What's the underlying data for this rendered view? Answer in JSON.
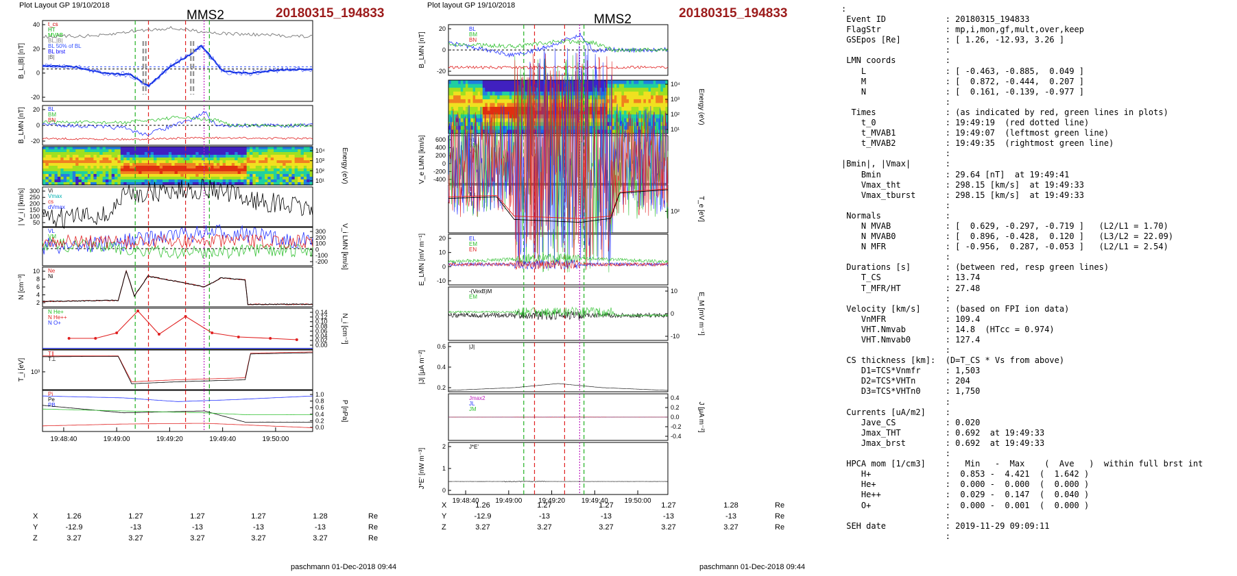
{
  "left_panel": {
    "plot_layout": "Plot Layout GP 19/10/2018",
    "spacecraft": "MMS2",
    "event": "20180315_194833",
    "footer": "paschmann 01-Dec-2018 09:44",
    "time_ticks": [
      "19:48:40",
      "19:49:00",
      "19:49:20",
      "19:49:40",
      "19:50:00"
    ],
    "ephemeris": {
      "rows": [
        {
          "label": "X",
          "values": [
            "1.26",
            "1.27",
            "1.27",
            "1.27",
            "1.28"
          ],
          "unit": "Re"
        },
        {
          "label": "Y",
          "values": [
            "-12.9",
            "-13",
            "-13",
            "-13",
            "-13"
          ],
          "unit": "Re"
        },
        {
          "label": "Z",
          "values": [
            "3.27",
            "3.27",
            "3.27",
            "3.27",
            "3.27"
          ],
          "unit": "Re"
        }
      ]
    },
    "panels": [
      {
        "ylabel": "B_L,|B| [nT]",
        "ticks_left": [
          "40",
          "20",
          "0",
          "-20"
        ],
        "legend": [
          "t_cs",
          "HT",
          "MVAB",
          "BL,|B|",
          "BL 50% of BL",
          "BL brst",
          "|B|"
        ],
        "legend_colors": [
          "#d00000",
          "#00a000",
          "#00c000",
          "#808080",
          "#3050ff",
          "#0000ff",
          "#555555"
        ]
      },
      {
        "ylabel": "B_LMN [nT]",
        "ticks_left": [
          "20",
          "0",
          "-20"
        ],
        "legend": [
          "BL",
          "BM",
          "BN"
        ],
        "legend_colors": [
          "#2030ff",
          "#30c030",
          "#e02020"
        ]
      },
      {
        "ylabel": "Energy (eV)",
        "ticks_right": [
          "10⁴",
          "10³",
          "10²",
          "10¹"
        ]
      },
      {
        "ylabel": "| V_i | [km/s]",
        "ticks_left": [
          "300",
          "250",
          "200",
          "150",
          "100",
          "50"
        ],
        "legend": [
          "Vi",
          "Vmax",
          "cs",
          "dVmax"
        ],
        "legend_colors": [
          "#000000",
          "#00b0b0",
          "#e02020",
          "#2030ff"
        ]
      },
      {
        "ylabel": "V_i LMN [km/s]",
        "ticks_right": [
          "300",
          "200",
          "100",
          "0",
          "-100",
          "-200"
        ],
        "legend": [
          "VL",
          "VM",
          "VN"
        ],
        "legend_colors": [
          "#2030ff",
          "#30c030",
          "#e02020"
        ]
      },
      {
        "ylabel": "N [cm⁻³]",
        "ticks_left": [
          "10",
          "8",
          "6",
          "4",
          "2"
        ],
        "legend": [
          "Ne",
          "Ni"
        ],
        "legend_colors": [
          "#e02020",
          "#000000"
        ]
      },
      {
        "ylabel": "N_i [cm⁻³]",
        "ticks_right": [
          "0.14",
          "0.12",
          "0.10",
          "0.08",
          "0.06",
          "0.04",
          "0.02",
          "0.00"
        ],
        "legend": [
          "N He+",
          "N He++",
          "N O+"
        ],
        "legend_colors": [
          "#20c020",
          "#e02020",
          "#2030ff"
        ]
      },
      {
        "ylabel": "T_i [eV]",
        "ticks_left": [
          "10³"
        ],
        "legend": [
          "T∥",
          "T⊥"
        ],
        "legend_colors": [
          "#e02020",
          "#000000"
        ]
      },
      {
        "ylabel": "P [nPa]",
        "ticks_right": [
          "1.0",
          "0.8",
          "0.6",
          "0.4",
          "0.2",
          "0.0"
        ],
        "legend": [
          "Pi",
          "Pe",
          "PB"
        ],
        "legend_colors": [
          "#e02020",
          "#000000",
          "#2030ff"
        ]
      }
    ]
  },
  "middle_panel": {
    "plot_layout": "Plot layout GP 19/10/2018",
    "spacecraft": "MMS2",
    "event": "20180315_194833",
    "footer": "paschmann 01-Dec-2018 09:44",
    "time_ticks": [
      "19:48:40",
      "19:49:00",
      "19:49:20",
      "19:49:40",
      "19:50:00"
    ],
    "ephemeris": {
      "rows": [
        {
          "label": "X",
          "values": [
            "1.26",
            "1.27",
            "1.27",
            "1.27",
            "1.28"
          ],
          "unit": "Re"
        },
        {
          "label": "Y",
          "values": [
            "-12.9",
            "-13",
            "-13",
            "-13",
            "-13"
          ],
          "unit": "Re"
        },
        {
          "label": "Z",
          "values": [
            "3.27",
            "3.27",
            "3.27",
            "3.27",
            "3.27"
          ],
          "unit": "Re"
        }
      ]
    },
    "panels": [
      {
        "ylabel": "B_LMN [nT]",
        "ticks_left": [
          "20",
          "0",
          "-20"
        ],
        "legend": [
          "BL",
          "BM",
          "BN"
        ],
        "legend_colors": [
          "#2030ff",
          "#30c030",
          "#e02020"
        ]
      },
      {
        "ylabel": "Energy (eV)",
        "ticks_right": [
          "10⁴",
          "10³",
          "10²",
          "10¹"
        ]
      },
      {
        "ylabel": "V_e LMN [km/s]",
        "ticks_left": [
          "600",
          "400",
          "200",
          "0",
          "-200",
          "-400"
        ],
        "legend": [
          "VL",
          "VM",
          "VN"
        ],
        "legend_colors": [
          "#2030ff",
          "#30c030",
          "#e02020"
        ]
      },
      {
        "ylabel": "T_e [eV]",
        "ticks_right": [
          "10²"
        ],
        "legend": [
          "T∥",
          "T⊥"
        ],
        "legend_colors": [
          "#e02020",
          "#000000"
        ]
      },
      {
        "ylabel": "E_LMN [mV m⁻¹]",
        "ticks_left": [
          "20",
          "10",
          "0",
          "-10"
        ],
        "legend": [
          "EL",
          "EM",
          "EN"
        ],
        "legend_colors": [
          "#2030ff",
          "#30c030",
          "#e02020"
        ]
      },
      {
        "ylabel": "E_M [mV m⁻¹]",
        "ticks_right": [
          "10",
          "0",
          "-10"
        ],
        "legend": [
          "-(VexB)M",
          "EM"
        ],
        "legend_colors": [
          "#000000",
          "#30c030"
        ]
      },
      {
        "ylabel": "|J| [μA m⁻²]",
        "ticks_left": [
          "0.6",
          "0.4",
          "0.2"
        ],
        "legend": [
          "|J|"
        ],
        "legend_colors": [
          "#000000"
        ]
      },
      {
        "ylabel": "J [μA m⁻²]",
        "ticks_right": [
          "0.4",
          "0.2",
          "0.0",
          "-0.2",
          "-0.4"
        ],
        "legend": [
          "Jmax2",
          "JL",
          "JM"
        ],
        "legend_colors": [
          "#c020c0",
          "#2030ff",
          "#30c030"
        ]
      },
      {
        "ylabel": "J*E' [nW m⁻³]",
        "ticks_left": [
          "2",
          "1",
          "0"
        ],
        "legend": [
          "J*E'"
        ],
        "legend_colors": [
          "#000000"
        ]
      }
    ]
  },
  "summary_lines": [
    ":",
    " Event ID            : 20180315_194833",
    " FlagStr             : mp,i,mon,gf,mult,over,keep",
    " GSEpos [Re]         : [ 1.26, -12.93, 3.26 ]",
    "                     :",
    " LMN coords          :",
    "    L                : [ -0.463, -0.885,  0.049 ]",
    "    M                : [  0.872, -0.444,  0.207 ]",
    "    N                : [  0.161, -0.139, -0.977 ]",
    "                     :",
    "  Times              : (as indicated by red, green lines in plots)",
    "    t_0              : 19:49:19  (red dotted line)",
    "    t_MVAB1          : 19:49:07  (leftmost green line)",
    "    t_MVAB2          : 19:49:35  (rightmost green line)",
    "                     :",
    "|Bmin|, |Vmax|       :",
    "    Bmin             : 29.64 [nT]  at 19:49:41",
    "    Vmax_tht         : 298.15 [km/s]  at 19:49:33",
    "    Vmax_tburst      : 298.15 [km/s]  at 19:49:33",
    "                     :",
    " Normals             :",
    "    N MVAB           : [  0.629, -0.297, -0.719 ]   (L2/L1 = 1.70)",
    "    N MVAB0          : [  0.896, -0.428,  0.120 ]   (L3/L2 = 22.09)",
    "    N MFR            : [ -0.956,  0.287, -0.053 ]   (L2/L1 = 2.54)",
    "                     :",
    " Durations [s]       : (between red, resp green lines)",
    "    T_CS             : 13.74",
    "    T_MFR/HT         : 27.48",
    "                     :",
    " Velocity [km/s]     : (based on FPI ion data)",
    "    VnMFR            : 109.4",
    "    VHT.Nmvab        : 14.8  (HTcc = 0.974)",
    "    VHT.Nmvab0       : 127.4",
    "                     :",
    " CS thickness [km]:  (D=T_CS * Vs from above)",
    "    D1=TCS*Vnmfr     : 1,503",
    "    D2=TCS*VHTn      : 204",
    "    D3=TCS*VHTn0     : 1,750",
    "                     :",
    " Currents [uA/m2]    :",
    "    Jave_CS          : 0.020",
    "    Jmax_THT         : 0.692  at 19:49:33",
    "    Jmax_brst        : 0.692  at 19:49:33",
    "                     :",
    " HPCA mom [1/cm3]    :   Min   -  Max    (  Ave   )  within full brst int",
    "    H+               :  0.853 -  4.421  (  1.642 )",
    "    He+              :  0.000 -  0.000  (  0.000 )",
    "    He++             :  0.029 -  0.147  (  0.040 )",
    "    O+               :  0.000 -  0.001  (  0.000 )",
    "                     :",
    " SEH date            : 2019-11-29 09:09:11",
    "                     :"
  ],
  "chart_data": [
    {
      "type": "line",
      "panel": "left",
      "x_range": [
        "19:48:32",
        "19:50:14"
      ],
      "markers": {
        "t_0": "19:49:19",
        "t_MVAB1": "19:49:07",
        "t_MVAB2": "19:49:35",
        "Vmax": "19:49:33",
        "cs_start": "19:49:12",
        "cs_end": "19:49:26"
      },
      "series": [
        {
          "name": "BL",
          "x": [
            "19:48:32",
            "19:48:45",
            "19:48:55",
            "19:49:05",
            "19:49:12",
            "19:49:20",
            "19:49:28",
            "19:49:32",
            "19:49:40",
            "19:49:50",
            "19:50:00",
            "19:50:14"
          ],
          "values": [
            3,
            2,
            -4,
            -5,
            -16,
            2,
            14,
            22,
            -2,
            -4,
            -1,
            0
          ]
        },
        {
          "name": "|B|",
          "x": [
            "19:48:32",
            "19:48:55",
            "19:49:05",
            "19:49:20",
            "19:49:40",
            "19:50:14"
          ],
          "values": [
            30,
            31,
            35,
            38,
            33,
            30
          ]
        }
      ]
    },
    {
      "type": "line",
      "panel": "left",
      "series": [
        {
          "name": "He++ density",
          "x": [
            "19:48:42",
            "19:48:52",
            "19:49:00",
            "19:49:08",
            "19:49:16",
            "19:49:26",
            "19:49:36",
            "19:49:46",
            "19:49:58",
            "19:50:08"
          ],
          "values": [
            0.04,
            0.04,
            0.06,
            0.14,
            0.055,
            0.12,
            0.06,
            0.045,
            0.04,
            0.035
          ]
        }
      ]
    }
  ]
}
